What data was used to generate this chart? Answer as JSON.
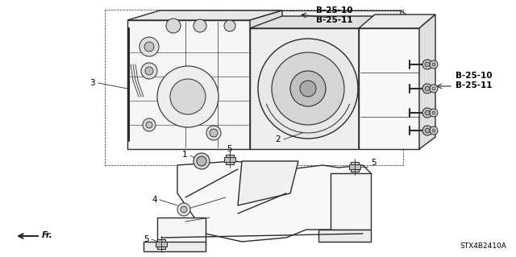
{
  "fig_width": 6.4,
  "fig_height": 3.19,
  "dpi": 100,
  "bg_color": "#ffffff",
  "line_color": "#2a2a2a",
  "text_color": "#000000",
  "lw_main": 1.0,
  "lw_thin": 0.6,
  "labels": {
    "label1": "1",
    "label2": "2",
    "label3": "3",
    "label4": "4",
    "label5a": "5",
    "label5b": "5",
    "label5c": "5",
    "b2510_top": "B-25-10\nB-25-11",
    "b2510_right": "B-25-10\nB-25-11",
    "fr": "Fr.",
    "part_num": "STX4B2410A"
  }
}
